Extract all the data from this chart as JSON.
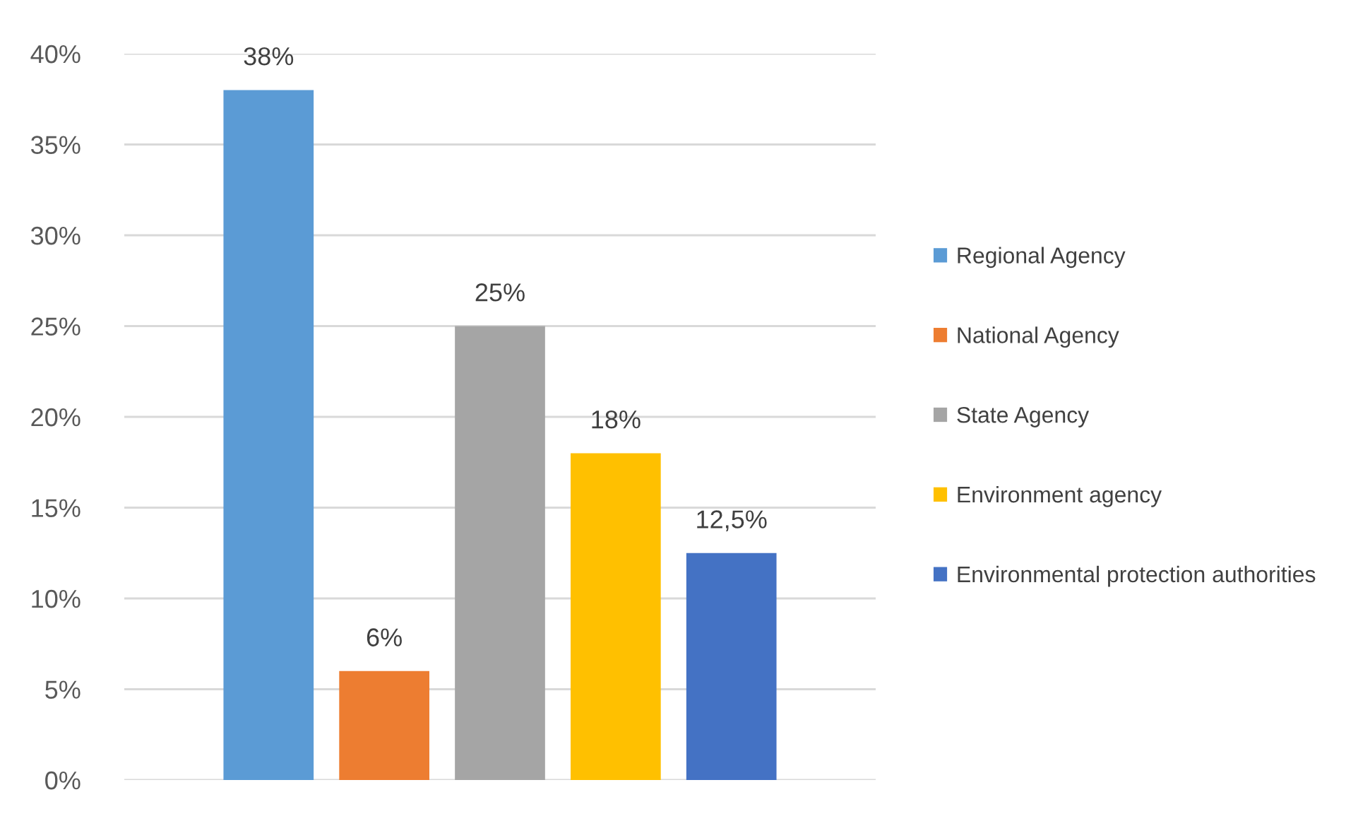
{
  "chart_data": {
    "type": "bar",
    "categories": [
      null
    ],
    "series": [
      {
        "name": "Regional Agency",
        "color": "#5b9bd5",
        "values": [
          38
        ],
        "value_labels": [
          "38%"
        ]
      },
      {
        "name": "National Agency",
        "color": "#ed7d31",
        "values": [
          6
        ],
        "value_labels": [
          "6%"
        ]
      },
      {
        "name": "State Agency",
        "color": "#a5a5a5",
        "values": [
          25
        ],
        "value_labels": [
          "25%"
        ]
      },
      {
        "name": "Environment agency",
        "color": "#ffc000",
        "values": [
          18
        ],
        "value_labels": [
          "18%"
        ]
      },
      {
        "name": "Environmental protection authorities",
        "color": "#4472c4",
        "values": [
          12.5
        ],
        "value_labels": [
          "12,5%"
        ]
      }
    ],
    "ylim": [
      0,
      40
    ],
    "yticks": [
      {
        "value": 0,
        "label": "0%"
      },
      {
        "value": 5,
        "label": "5%"
      },
      {
        "value": 10,
        "label": "10%"
      },
      {
        "value": 15,
        "label": "15%"
      },
      {
        "value": 20,
        "label": "20%"
      },
      {
        "value": 25,
        "label": "25%"
      },
      {
        "value": 30,
        "label": "30%"
      },
      {
        "value": 35,
        "label": "35%"
      },
      {
        "value": 40,
        "label": "40%"
      }
    ],
    "grid": "y",
    "legend": "right"
  }
}
